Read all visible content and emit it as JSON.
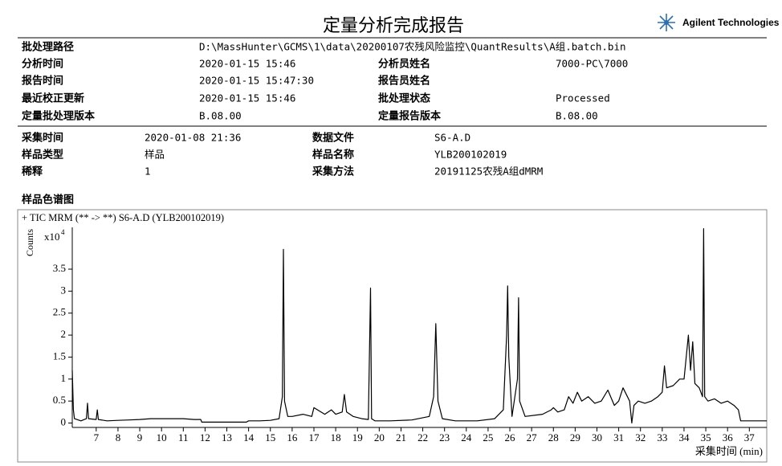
{
  "header": {
    "title": "定量分析完成报告",
    "logo": "Agilent Technologies"
  },
  "batch_info": {
    "rows": [
      [
        "批处理路径",
        "D:\\MassHunter\\GCMS\\1\\data\\20200107农残风险监控\\QuantResults\\A组.batch.bin"
      ],
      [
        "分析时间",
        "2020-01-15 15:46",
        "分析员姓名",
        "7000-PC\\7000"
      ],
      [
        "报告时间",
        "2020-01-15 15:47:30",
        "报告员姓名"
      ],
      [
        "最近校正更新",
        "2020-01-15 15:46",
        "批处理状态",
        "Processed"
      ],
      [
        "定量批处理版本",
        "B.08.00",
        "定量报告版本",
        "B.08.00"
      ]
    ]
  },
  "sample_info": {
    "rows": [
      [
        "采集时间",
        "2020-01-08 21:36",
        "数据文件",
        "S6-A.D"
      ],
      [
        "样品类型",
        "样品",
        "样品名称",
        "YLB200102019"
      ],
      [
        "稀释",
        "1",
        "采集方法",
        "20191125农残A组dMRM"
      ]
    ]
  },
  "section_title": "样品色谱图",
  "chart_data": {
    "type": "line",
    "title": "+ TIC MRM (** -> **) S6-A.D (YLB200102019)",
    "y_label": "Counts",
    "y_multiplier": "x10",
    "y_multiplier_exponent": "4",
    "x_label": "采集时间 (min)",
    "color": "#000000",
    "xlim": [
      5.9,
      37.8
    ],
    "ylim": [
      -0.1,
      4.45
    ],
    "xticks": [
      7,
      8,
      9,
      10,
      11,
      12,
      13,
      14,
      15,
      16,
      17,
      18,
      19,
      20,
      21,
      22,
      23,
      24,
      25,
      26,
      27,
      28,
      29,
      30,
      31,
      32,
      33,
      34,
      35,
      36,
      37
    ],
    "yticks": [
      0,
      0.5,
      1,
      1.5,
      2,
      2.5,
      3,
      3.5
    ],
    "x": [
      5.9,
      5.95,
      6.0,
      6.3,
      6.55,
      6.6,
      6.65,
      7.0,
      7.05,
      7.1,
      7.5,
      8.0,
      8.5,
      9.0,
      9.5,
      10.0,
      10.5,
      11.0,
      11.5,
      11.8,
      11.85,
      13.9,
      14.0,
      14.5,
      15.0,
      15.4,
      15.55,
      15.6,
      15.65,
      15.8,
      16.0,
      16.5,
      16.9,
      17.0,
      17.5,
      17.8,
      18.0,
      18.3,
      18.4,
      18.5,
      18.8,
      19.2,
      19.5,
      19.6,
      19.65,
      19.8,
      20.5,
      21.5,
      22.3,
      22.5,
      22.6,
      22.7,
      22.9,
      23.5,
      24.5,
      25.3,
      25.7,
      25.85,
      25.9,
      25.95,
      26.1,
      26.35,
      26.4,
      26.45,
      26.7,
      27.5,
      27.9,
      28.0,
      28.2,
      28.5,
      28.7,
      28.9,
      29.1,
      29.3,
      29.6,
      29.9,
      30.2,
      30.5,
      30.8,
      31.0,
      31.2,
      31.5,
      31.6,
      31.7,
      31.9,
      32.2,
      32.5,
      32.8,
      33.0,
      33.1,
      33.2,
      33.5,
      33.8,
      34.0,
      34.1,
      34.2,
      34.3,
      34.4,
      34.5,
      34.7,
      34.85,
      34.9,
      34.95,
      35.1,
      35.4,
      35.7,
      36.0,
      36.3,
      36.5,
      36.6,
      36.8,
      37.2,
      37.8
    ],
    "values": [
      1.2,
      0.3,
      0.1,
      0.05,
      0.1,
      0.45,
      0.1,
      0.08,
      0.3,
      0.08,
      0.05,
      0.06,
      0.07,
      0.08,
      0.1,
      0.1,
      0.1,
      0.1,
      0.08,
      0.08,
      0.02,
      0.02,
      0.05,
      0.05,
      0.06,
      0.1,
      0.6,
      3.95,
      0.5,
      0.15,
      0.15,
      0.2,
      0.15,
      0.35,
      0.2,
      0.3,
      0.2,
      0.25,
      0.65,
      0.25,
      0.15,
      0.1,
      0.08,
      3.07,
      0.1,
      0.05,
      0.05,
      0.07,
      0.15,
      0.6,
      2.26,
      0.5,
      0.1,
      0.05,
      0.05,
      0.1,
      0.3,
      2.0,
      3.12,
      1.5,
      0.15,
      1.0,
      2.85,
      0.5,
      0.15,
      0.2,
      0.3,
      0.35,
      0.25,
      0.3,
      0.6,
      0.45,
      0.7,
      0.5,
      0.6,
      0.45,
      0.5,
      0.75,
      0.4,
      0.5,
      0.8,
      0.5,
      0.0,
      0.4,
      0.5,
      0.45,
      0.5,
      0.6,
      0.7,
      1.3,
      0.8,
      0.85,
      1.0,
      1.0,
      1.5,
      2.0,
      1.2,
      1.85,
      0.9,
      0.8,
      0.6,
      4.42,
      0.6,
      0.5,
      0.55,
      0.45,
      0.5,
      0.4,
      0.3,
      0.05,
      0.05,
      0.05,
      0.05
    ]
  }
}
